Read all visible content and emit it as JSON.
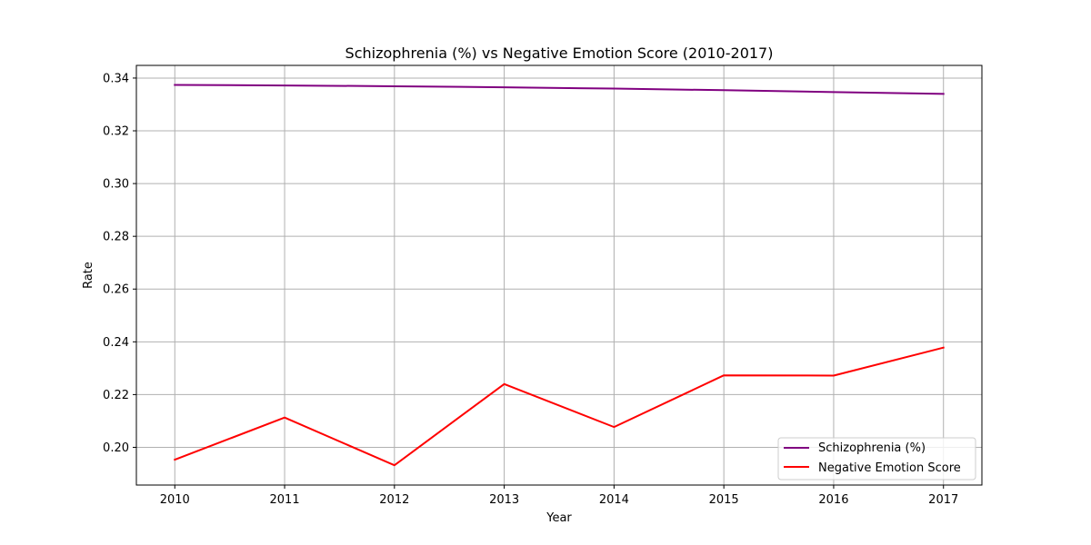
{
  "chart_data": {
    "type": "line",
    "title": "Schizophrenia (%) vs Negative Emotion Score (2010-2017)",
    "xlabel": "Year",
    "ylabel": "Rate",
    "x": [
      2010,
      2011,
      2012,
      2013,
      2014,
      2015,
      2016,
      2017
    ],
    "x_tick_labels": [
      "2010",
      "2011",
      "2012",
      "2013",
      "2014",
      "2015",
      "2016",
      "2017"
    ],
    "xlim": [
      2009.65,
      2017.35
    ],
    "ylim": [
      0.1857,
      0.3448
    ],
    "y_ticks": [
      0.2,
      0.22,
      0.24,
      0.26,
      0.28,
      0.3,
      0.32,
      0.34
    ],
    "y_tick_labels": [
      "0.20",
      "0.22",
      "0.24",
      "0.26",
      "0.28",
      "0.30",
      "0.32",
      "0.34"
    ],
    "grid": true,
    "legend_position": "lower-right",
    "series": [
      {
        "name": "Schizophrenia (%)",
        "color": "#800080",
        "values": [
          0.3374,
          0.3372,
          0.3369,
          0.3365,
          0.336,
          0.3354,
          0.3347,
          0.334
        ]
      },
      {
        "name": "Negative Emotion Score",
        "color": "#ff0000",
        "values": [
          0.1953,
          0.2113,
          0.1932,
          0.224,
          0.2077,
          0.2273,
          0.2272,
          0.2378
        ]
      }
    ]
  }
}
